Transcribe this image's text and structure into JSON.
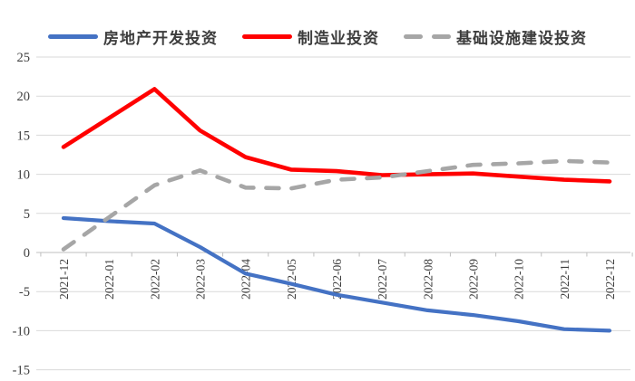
{
  "chart_data": {
    "type": "line",
    "title": "",
    "xlabel": "",
    "ylabel": "",
    "grid": true,
    "legend_position": "top",
    "ylim": [
      -15,
      25
    ],
    "yticks": [
      25,
      20,
      15,
      10,
      5,
      0,
      -5,
      -10,
      -15
    ],
    "x": [
      "2021-12",
      "2022-01",
      "2022-02",
      "2022-03",
      "2022-04",
      "2022-05",
      "2022-06",
      "2022-07",
      "2022-08",
      "2022-09",
      "2022-10",
      "2022-11",
      "2022-12"
    ],
    "series": [
      {
        "name": "房地产开发投资",
        "color": "#4472C4",
        "dash": "solid",
        "values": [
          4.4,
          4.0,
          3.7,
          0.7,
          -2.7,
          -4.0,
          -5.4,
          -6.4,
          -7.4,
          -8.0,
          -8.8,
          -9.8,
          -10.0
        ]
      },
      {
        "name": "制造业投资",
        "color": "#FF0000",
        "dash": "solid",
        "values": [
          13.5,
          17.2,
          20.9,
          15.6,
          12.2,
          10.6,
          10.4,
          9.9,
          10.0,
          10.1,
          9.7,
          9.3,
          9.1
        ]
      },
      {
        "name": "基础设施建设投资",
        "color": "#A6A6A6",
        "dash": "dashed",
        "values": [
          0.4,
          4.5,
          8.6,
          10.5,
          8.3,
          8.2,
          9.3,
          9.6,
          10.4,
          11.2,
          11.4,
          11.7,
          11.5
        ]
      }
    ]
  },
  "style": {
    "background": "#FFFFFF",
    "gridline_color": "#D9D9D9",
    "axis_color": "#BFBFBF",
    "tick_label_color": "#3F3F3F",
    "legend_text_color": "#3D3D3D"
  }
}
